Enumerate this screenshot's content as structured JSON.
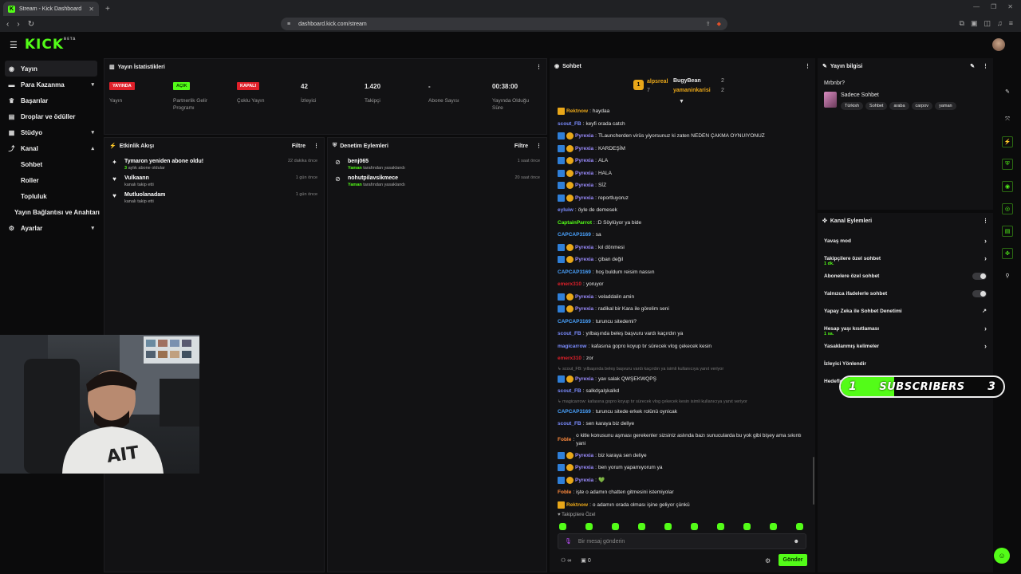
{
  "browser": {
    "tab_title": "Stream - Kick Dashboard",
    "url": "dashboard.kick.com/stream"
  },
  "brand": {
    "logo": "KICK",
    "beta": "BETA",
    "accent": "#53fc18"
  },
  "sidebar": {
    "items": [
      {
        "label": "Yayın",
        "icon": "broadcast-icon",
        "active": true
      },
      {
        "label": "Para Kazanma",
        "icon": "money-icon",
        "chevron": true
      },
      {
        "label": "Başarılar",
        "icon": "trophy-icon"
      },
      {
        "label": "Droplar ve ödüller",
        "icon": "gift-icon"
      },
      {
        "label": "Stüdyo",
        "icon": "studio-icon",
        "chevron": true
      },
      {
        "label": "Kanal",
        "icon": "channel-icon",
        "chevron": true
      },
      {
        "label": "Sohbet",
        "sub": true
      },
      {
        "label": "Roller",
        "sub": true
      },
      {
        "label": "Topluluk",
        "sub": true
      },
      {
        "label": "Yayın Bağlantısı ve Anahtarı",
        "sub": true
      },
      {
        "label": "Ayarlar",
        "icon": "gear-icon",
        "chevron": true
      }
    ]
  },
  "stats": {
    "title": "Yayın İstatistikleri",
    "items": [
      {
        "value": "YAYINDA",
        "kind": "red",
        "label": "Yayın"
      },
      {
        "value": "AÇIK",
        "kind": "green",
        "label": "Partnerlik Gelir Programı"
      },
      {
        "value": "KAPALI",
        "kind": "red",
        "label": "Çoklu Yayın"
      },
      {
        "value": "42",
        "label": "İzleyici"
      },
      {
        "value": "1.420",
        "label": "Takipçi"
      },
      {
        "value": "-",
        "label": "Abone Sayısı"
      },
      {
        "value": "00:38:00",
        "label": "Yayında Olduğu Süre"
      }
    ]
  },
  "activity": {
    "title": "Etkinlik Akışı",
    "filter": "Filtre",
    "items": [
      {
        "name": "Tymaron yeniden abone oldu!",
        "sub_em": "3",
        "sub": " aylık abone oldular",
        "time": "22 dakika önce",
        "icon": "sparkle-icon"
      },
      {
        "name": "Vulkaann",
        "sub_em": "",
        "sub": "kanalı takip etti",
        "time": "1 gün önce",
        "icon": "heart-icon"
      },
      {
        "name": "Mutluolanadam",
        "sub_em": "",
        "sub": "kanalı takip etti",
        "time": "1 gün önce",
        "icon": "heart-icon"
      }
    ]
  },
  "moderation": {
    "title": "Denetim Eylemleri",
    "filter": "Filtre",
    "items": [
      {
        "name": "benj065",
        "by": "Yaman",
        "sub": " tarafından yasaklandı",
        "time": "1 saat önce"
      },
      {
        "name": "nohutpilavsikmece",
        "by": "Yaman",
        "sub": " tarafından yasaklandı",
        "time": "20 saat önce"
      }
    ]
  },
  "chat": {
    "title": "Sohbet",
    "top": [
      {
        "rank": "1",
        "name": "alpsreal",
        "count": "7"
      },
      {
        "name": "BugyBean",
        "count": "2"
      },
      {
        "name": "yamaninkarisi",
        "count": "2"
      }
    ],
    "messages": [
      {
        "user": "Rektnow",
        "color": "#e9a719",
        "badges": "c",
        "text": "haydaa"
      },
      {
        "user": "scout_FB",
        "color": "#7b8cff",
        "badges": "",
        "text": "keyfi orada catch"
      },
      {
        "user": "Pyrexia",
        "color": "#9b8cff",
        "badges": "ao",
        "text": "TLauncherden virüs yiyorsunuz ki zaten NEDEN ÇAKMA OYNUIYONUZ"
      },
      {
        "user": "Pyrexia",
        "color": "#9b8cff",
        "badges": "ao",
        "text": "KARDEŞİM"
      },
      {
        "user": "Pyrexia",
        "color": "#9b8cff",
        "badges": "ao",
        "text": "ALA"
      },
      {
        "user": "Pyrexia",
        "color": "#9b8cff",
        "badges": "ao",
        "text": "HALA"
      },
      {
        "user": "Pyrexia",
        "color": "#9b8cff",
        "badges": "ao",
        "text": "SİZ"
      },
      {
        "user": "Pyrexia",
        "color": "#9b8cff",
        "badges": "ao",
        "text": "reportluyoruz"
      },
      {
        "user": "eyluiw",
        "color": "#7b8cff",
        "badges": "",
        "text": "öyle de demesek"
      },
      {
        "user": "CaptainParrot",
        "color": "#53fc18",
        "badges": "",
        "text": ":D Söylüyor ya bide"
      },
      {
        "user": "CAPCAP3169",
        "color": "#4aa3ff",
        "badges": "",
        "text": "sa"
      },
      {
        "user": "Pyrexia",
        "color": "#9b8cff",
        "badges": "ao",
        "text": "kıl dönmesi"
      },
      {
        "user": "Pyrexia",
        "color": "#9b8cff",
        "badges": "ao",
        "text": "çiban değil"
      },
      {
        "user": "CAPCAP3169",
        "color": "#4aa3ff",
        "badges": "",
        "text": "hoş buldum reisim nassın"
      },
      {
        "user": "emerx310",
        "color": "#e0202a",
        "badges": "",
        "text": "yoruyor"
      },
      {
        "user": "Pyrexia",
        "color": "#9b8cff",
        "badges": "ao",
        "text": "veladdalin amin"
      },
      {
        "user": "Pyrexia",
        "color": "#9b8cff",
        "badges": "ao",
        "text": "radikal bir Kara ile görelim seni"
      },
      {
        "user": "CAPCAP3169",
        "color": "#4aa3ff",
        "badges": "",
        "text": "turuncu sitedemi?"
      },
      {
        "user": "scout_FB",
        "color": "#7b8cff",
        "badges": "",
        "text": "yılbaşında beleş başvuru vardı kaçırdın ya"
      },
      {
        "user": "magicarrow",
        "color": "#7b8cff",
        "badges": "",
        "text": "kafasına gopro koyup tır sürecek vlog çekecek kesin"
      },
      {
        "user": "emerx310",
        "color": "#e0202a",
        "badges": "",
        "text": "zor"
      },
      {
        "sys": "↳ scout_FB: yılbaşında beleş başvuru vardı kaçırdın ya isimli kullanıcıya yanıt veriyor"
      },
      {
        "user": "Pyrexia",
        "color": "#9b8cff",
        "badges": "ao",
        "text": "yav salak QWŞEKWQPŞ"
      },
      {
        "user": "scout_FB",
        "color": "#7b8cff",
        "badges": "",
        "text": "salkdşalşkalkd"
      },
      {
        "sys": "↳ magicarrow: kafasına gopro koyup tır sürecek vlog çekecek kesin isimli kullanıcıya yanıt veriyor"
      },
      {
        "user": "CAPCAP3169",
        "color": "#4aa3ff",
        "badges": "",
        "text": "turuncu sitede erkek rolünü oynicak"
      },
      {
        "user": "scout_FB",
        "color": "#7b8cff",
        "badges": "",
        "text": "sen karaya biz deliye"
      },
      {
        "user": "Foble",
        "color": "#ff8a3d",
        "badges": "",
        "text": "o kitle konusunu aşması gerekenler sizsiniz aslında bazı sunucularda bu yok gibi bişey ama sıkıntı yani",
        "wrap": true
      },
      {
        "user": "Pyrexia",
        "color": "#9b8cff",
        "badges": "ao",
        "text": "biz karaya sen deliye"
      },
      {
        "user": "Pyrexia",
        "color": "#9b8cff",
        "badges": "ao",
        "text": "ben yorum yapamıyorum ya"
      },
      {
        "user": "Pyrexia",
        "color": "#9b8cff",
        "badges": "ao",
        "text": "💚"
      },
      {
        "user": "Foble",
        "color": "#ff8a3d",
        "badges": "",
        "text": "işte o adamın chatten gitmesini istemiyolar"
      },
      {
        "user": "Rektnow",
        "color": "#e9a719",
        "badges": "c",
        "text": "o adamın orada olması işine geliyor çünkü"
      }
    ],
    "followers_only": "♥ Takipçilere Özel",
    "placeholder": "Bir mesaj gönderin",
    "users_count": "∞",
    "box_count": "0",
    "send": "Gönder"
  },
  "stream_info": {
    "title": "Yayın bilgisi",
    "stream_title": "Mrbnbr?",
    "category": "Sadece Sohbet",
    "tags": [
      "Türkish",
      "Sohbet",
      "araba",
      "carpov",
      "yaman"
    ]
  },
  "channel_actions": {
    "title": "Kanal Eylemleri",
    "items": [
      {
        "label": "Yavaş mod",
        "right": "›"
      },
      {
        "label": "Takipçilere özel sohbet",
        "sub": "1 dk.",
        "right": "›"
      },
      {
        "label": "Abonelere özel sohbet",
        "toggle": true
      },
      {
        "label": "Yalnızca ifadelerle sohbet",
        "toggle": true
      },
      {
        "label": "Yapay Zeka ile Sohbet Denetimi",
        "right": "↗"
      },
      {
        "label": "Hesap yaşı kısıtlaması",
        "sub": "1 sa.",
        "right": "›"
      },
      {
        "label": "Yasaklanmış kelimeler",
        "right": "›"
      },
      {
        "label": "İzleyici Yönlendir"
      },
      {
        "label": "Hedefler belirle"
      }
    ]
  },
  "sub_goal": {
    "current": "1",
    "label": "SUBSCRIBERS",
    "target": "3",
    "progress": 0.33
  }
}
